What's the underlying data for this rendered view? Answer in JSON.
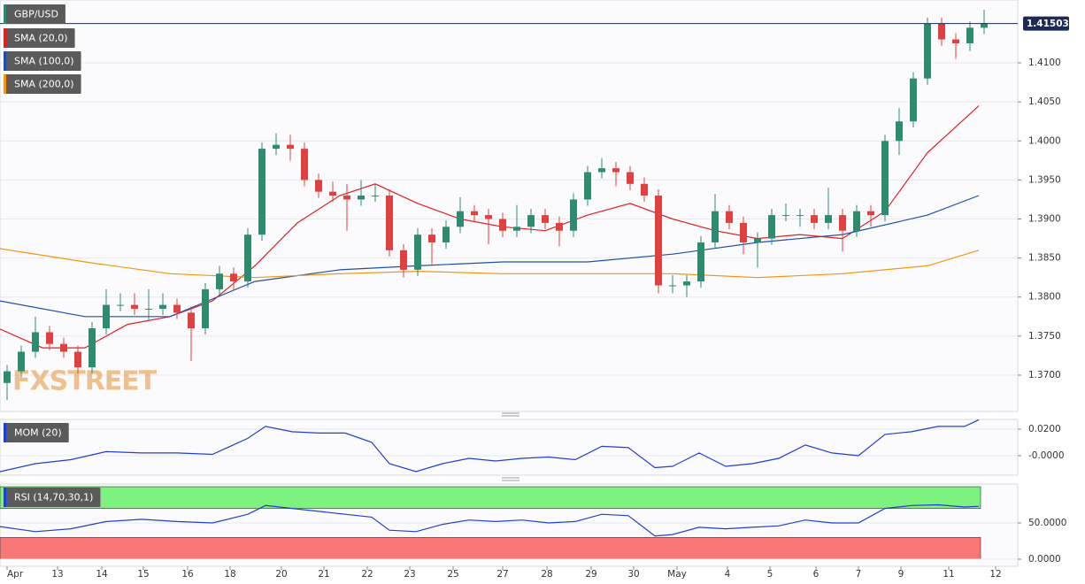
{
  "chart_data": [
    {
      "type": "candlestick",
      "title": "GBP/USD",
      "watermark": "FXSTREET",
      "up_color": "#2e8b6e",
      "down_color": "#e0403f",
      "title_color": "#2e8b6e",
      "xlim": [
        -0.16,
        22.84
      ],
      "ylim": [
        1.36535,
        1.41805
      ],
      "yticks": [
        {
          "value": 1.37,
          "label": "1.3700"
        },
        {
          "value": 1.375,
          "label": "1.3750"
        },
        {
          "value": 1.38,
          "label": "1.3800"
        },
        {
          "value": 1.385,
          "label": "1.3850"
        },
        {
          "value": 1.39,
          "label": "1.3900"
        },
        {
          "value": 1.395,
          "label": "1.3950"
        },
        {
          "value": 1.4,
          "label": "1.4000"
        },
        {
          "value": 1.405,
          "label": "1.4050"
        },
        {
          "value": 1.41,
          "label": "1.4100"
        }
      ],
      "last": 1.41503,
      "x": [
        0,
        0.32,
        0.64,
        0.96,
        1.28,
        1.6,
        1.92,
        2.24,
        2.56,
        2.88,
        3.2,
        3.52,
        3.84,
        4.16,
        4.48,
        4.8,
        5.12,
        5.44,
        5.76,
        6.08,
        6.4,
        6.72,
        7.04,
        7.36,
        7.68,
        8,
        8.32,
        8.64,
        8.96,
        9.28,
        9.6,
        9.92,
        10.24,
        10.56,
        10.88,
        11.2,
        11.52,
        11.84,
        12.16,
        12.48,
        12.8,
        13.12,
        13.44,
        13.76,
        14.08,
        14.4,
        14.72,
        15.04,
        15.36,
        15.68,
        16,
        16.32,
        16.64,
        16.96,
        17.28,
        17.6,
        17.92,
        18.24,
        18.56,
        18.88,
        19.2,
        19.52,
        19.84,
        20.16,
        20.48,
        20.8,
        21.12,
        21.44,
        21.76,
        22.08
      ],
      "open": [
        1.369,
        1.3705,
        1.373,
        1.3755,
        1.374,
        1.373,
        1.371,
        1.376,
        1.379,
        1.379,
        1.3785,
        1.3785,
        1.379,
        1.378,
        1.376,
        1.381,
        1.383,
        1.382,
        1.388,
        1.399,
        1.3995,
        1.399,
        1.395,
        1.3935,
        1.393,
        1.3925,
        1.393,
        1.393,
        1.386,
        1.3835,
        1.388,
        1.387,
        1.389,
        1.391,
        1.3905,
        1.39,
        1.3885,
        1.389,
        1.3905,
        1.3895,
        1.3885,
        1.3925,
        1.396,
        1.3965,
        1.396,
        1.3945,
        1.393,
        1.3815,
        1.3815,
        1.382,
        1.387,
        1.391,
        1.3895,
        1.387,
        1.3875,
        1.3905,
        1.3905,
        1.3905,
        1.3895,
        1.3905,
        1.3885,
        1.391,
        1.3905,
        1.4,
        1.4025,
        1.408,
        1.415,
        1.413,
        1.4125,
        1.4145
      ],
      "high": [
        1.3713,
        1.3738,
        1.3775,
        1.3763,
        1.3748,
        1.3738,
        1.3768,
        1.381,
        1.3805,
        1.3805,
        1.381,
        1.3805,
        1.3798,
        1.3788,
        1.3818,
        1.384,
        1.3838,
        1.3888,
        1.3998,
        1.401,
        1.4008,
        1.3998,
        1.3958,
        1.3948,
        1.3945,
        1.395,
        1.3945,
        1.3938,
        1.3868,
        1.3888,
        1.3888,
        1.3898,
        1.3928,
        1.3918,
        1.3913,
        1.3908,
        1.3918,
        1.3913,
        1.3913,
        1.3903,
        1.3933,
        1.3968,
        1.3978,
        1.3973,
        1.3968,
        1.3953,
        1.3938,
        1.3828,
        1.3828,
        1.3878,
        1.3932,
        1.3918,
        1.3903,
        1.3883,
        1.3913,
        1.392,
        1.3913,
        1.3913,
        1.394,
        1.3913,
        1.3918,
        1.3918,
        1.4008,
        1.4042,
        1.4088,
        1.4158,
        1.4158,
        1.4138,
        1.4153,
        1.4168
      ],
      "low": [
        1.3668,
        1.3697,
        1.3722,
        1.3732,
        1.3722,
        1.3702,
        1.3702,
        1.3752,
        1.3782,
        1.3777,
        1.377,
        1.3777,
        1.3772,
        1.3718,
        1.3752,
        1.3802,
        1.3808,
        1.3812,
        1.3872,
        1.3982,
        1.3975,
        1.3942,
        1.3927,
        1.3922,
        1.3885,
        1.3917,
        1.3922,
        1.3852,
        1.3825,
        1.3827,
        1.3842,
        1.3862,
        1.3882,
        1.3897,
        1.3868,
        1.3877,
        1.3877,
        1.3882,
        1.3887,
        1.3865,
        1.3877,
        1.3917,
        1.3952,
        1.3942,
        1.3937,
        1.3922,
        1.3805,
        1.3805,
        1.38,
        1.3812,
        1.3862,
        1.3887,
        1.3855,
        1.3838,
        1.3867,
        1.3897,
        1.389,
        1.3887,
        1.3887,
        1.3858,
        1.3877,
        1.389,
        1.3897,
        1.3982,
        1.4017,
        1.4072,
        1.4122,
        1.4105,
        1.4115,
        1.4137
      ],
      "close": [
        1.3705,
        1.373,
        1.3755,
        1.374,
        1.373,
        1.371,
        1.376,
        1.379,
        1.379,
        1.3785,
        1.3785,
        1.379,
        1.378,
        1.376,
        1.381,
        1.383,
        1.382,
        1.388,
        1.399,
        1.3995,
        1.399,
        1.395,
        1.3935,
        1.393,
        1.3925,
        1.393,
        1.393,
        1.386,
        1.3835,
        1.388,
        1.387,
        1.389,
        1.391,
        1.3905,
        1.39,
        1.3885,
        1.389,
        1.3905,
        1.3895,
        1.3885,
        1.3925,
        1.396,
        1.3965,
        1.396,
        1.3945,
        1.393,
        1.3815,
        1.3815,
        1.382,
        1.387,
        1.391,
        1.3895,
        1.387,
        1.3875,
        1.3905,
        1.3905,
        1.3905,
        1.3895,
        1.3905,
        1.3885,
        1.391,
        1.3905,
        1.4,
        1.4025,
        1.408,
        1.415,
        1.413,
        1.4125,
        1.4145,
        1.415
      ],
      "series": [
        {
          "name": "SMA (20,0)",
          "color": "#e02020",
          "x": [
            -0.16,
            0.8,
            1.76,
            2.72,
            3.68,
            4.64,
            5.6,
            6.56,
            7.52,
            8.32,
            9.28,
            10.24,
            11.2,
            12.16,
            13.12,
            14.08,
            15.04,
            16,
            16.96,
            17.92,
            18.88,
            19.84,
            20.8,
            21.96
          ],
          "values": [
            1.3759,
            1.3735,
            1.3735,
            1.3765,
            1.3775,
            1.3795,
            1.384,
            1.3895,
            1.393,
            1.3945,
            1.392,
            1.39,
            1.389,
            1.3885,
            1.3905,
            1.392,
            1.39,
            1.3885,
            1.3875,
            1.388,
            1.3875,
            1.391,
            1.3985,
            1.4045
          ]
        },
        {
          "name": "SMA (100,0)",
          "color": "#1f4fa8",
          "x": [
            -0.16,
            1.76,
            3.68,
            5.6,
            7.52,
            9.28,
            11.2,
            13.12,
            15.04,
            16.96,
            18.88,
            20.8,
            21.96
          ],
          "values": [
            1.3795,
            1.3775,
            1.3775,
            1.382,
            1.3835,
            1.384,
            1.3845,
            1.3845,
            1.3855,
            1.387,
            1.388,
            1.3905,
            1.393
          ]
        },
        {
          "name": "SMA (200,0)",
          "color": "#f0960f",
          "x": [
            -0.16,
            1.76,
            3.68,
            5.6,
            7.52,
            9.28,
            11.2,
            13.12,
            15.04,
            16.96,
            18.88,
            20.8,
            21.96
          ],
          "values": [
            1.3862,
            1.3845,
            1.383,
            1.3825,
            1.383,
            1.3833,
            1.383,
            1.383,
            1.383,
            1.3825,
            1.383,
            1.384,
            1.386
          ]
        }
      ]
    },
    {
      "type": "line",
      "xlim": [
        -0.16,
        22.84
      ],
      "ylim": [
        -0.0147,
        0.0273
      ],
      "yticks": [
        {
          "value": 0,
          "label": "-0.0000"
        },
        {
          "value": 0.02,
          "label": "0.0200"
        }
      ],
      "series": [
        {
          "name": "MOM (20)",
          "color": "#1f3fd0",
          "x": [
            -0.16,
            0.64,
            1.44,
            2.24,
            3.04,
            3.84,
            4.64,
            5.44,
            5.84,
            6.44,
            7.04,
            7.64,
            8.24,
            8.64,
            9.24,
            9.84,
            10.44,
            11.04,
            11.64,
            12.24,
            12.84,
            13.44,
            14.04,
            14.64,
            15.04,
            15.64,
            16.24,
            16.84,
            17.44,
            18.04,
            18.64,
            19.24,
            19.84,
            20.44,
            21.04,
            21.64,
            21.96
          ],
          "values": [
            -0.012,
            -0.006,
            -0.003,
            0.003,
            0.002,
            0.002,
            0.001,
            0.013,
            0.022,
            0.018,
            0.017,
            0.017,
            0.01,
            -0.006,
            -0.012,
            -0.006,
            -0.002,
            -0.004,
            -0.002,
            -0.001,
            -0.003,
            0.007,
            0.006,
            -0.009,
            -0.008,
            0.002,
            -0.008,
            -0.006,
            -0.002,
            0.008,
            0.002,
            0,
            0.016,
            0.018,
            0.022,
            0.022,
            0.027
          ]
        }
      ]
    },
    {
      "type": "line",
      "xlim": [
        -0.16,
        22.84
      ],
      "ylim": [
        -9.8,
        103.7
      ],
      "yticks": [
        {
          "value": 0,
          "label": "0.0000"
        },
        {
          "value": 50,
          "label": "50.0000"
        }
      ],
      "zones": [
        {
          "from": 70,
          "to": 100,
          "color": "#7ef27e"
        },
        {
          "from": 0,
          "to": 30,
          "color": "#f87878"
        }
      ],
      "xticks": [
        {
          "value": 0,
          "label": "Apr"
        },
        {
          "value": 1.14,
          "label": "13"
        },
        {
          "value": 2.14,
          "label": "14"
        },
        {
          "value": 3.08,
          "label": "15"
        },
        {
          "value": 4.08,
          "label": "16"
        },
        {
          "value": 5.04,
          "label": "18"
        },
        {
          "value": 6.2,
          "label": "20"
        },
        {
          "value": 7.16,
          "label": "21"
        },
        {
          "value": 8.14,
          "label": "22"
        },
        {
          "value": 9.1,
          "label": "23"
        },
        {
          "value": 10.08,
          "label": "25"
        },
        {
          "value": 11.2,
          "label": "27"
        },
        {
          "value": 12.2,
          "label": "28"
        },
        {
          "value": 13.2,
          "label": "29"
        },
        {
          "value": 14.16,
          "label": "30"
        },
        {
          "value": 15.14,
          "label": "May"
        },
        {
          "value": 16.28,
          "label": "4"
        },
        {
          "value": 17.24,
          "label": "5"
        },
        {
          "value": 18.28,
          "label": "6"
        },
        {
          "value": 19.24,
          "label": "7"
        },
        {
          "value": 20.2,
          "label": "9"
        },
        {
          "value": 21.28,
          "label": "11"
        },
        {
          "value": 22.34,
          "label": "12"
        }
      ],
      "series": [
        {
          "name": "RSI (14,70,30,1)",
          "color": "#1f3fd0",
          "x": [
            -0.16,
            0.64,
            1.44,
            2.24,
            3.04,
            3.84,
            4.64,
            5.44,
            5.84,
            6.44,
            7.04,
            7.64,
            8.24,
            8.64,
            9.24,
            9.84,
            10.44,
            11.04,
            11.64,
            12.24,
            12.84,
            13.44,
            14.04,
            14.64,
            15.04,
            15.64,
            16.24,
            16.84,
            17.44,
            18.04,
            18.64,
            19.24,
            19.84,
            20.44,
            21.04,
            21.64,
            21.96
          ],
          "values": [
            45,
            38,
            42,
            52,
            55,
            52,
            50,
            62,
            74,
            70,
            66,
            62,
            58,
            40,
            38,
            48,
            54,
            52,
            54,
            50,
            52,
            62,
            60,
            32,
            34,
            44,
            42,
            44,
            46,
            54,
            50,
            50,
            70,
            74,
            75,
            72,
            73
          ]
        }
      ]
    }
  ]
}
